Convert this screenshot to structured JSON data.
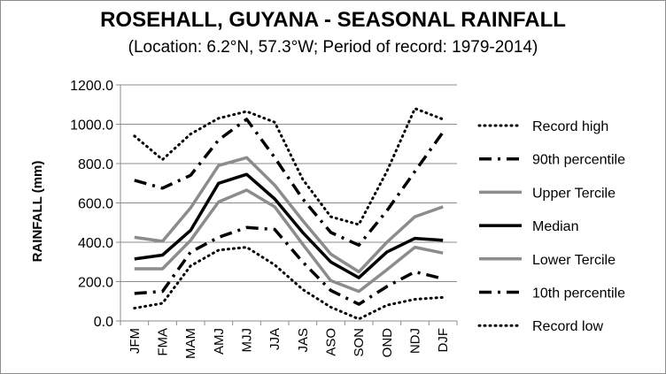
{
  "chart_data": {
    "type": "line",
    "title": "ROSEHALL, GUYANA - SEASONAL RAINFALL",
    "subtitle": "(Location: 6.2°N, 57.3°W; Period of record: 1979-2014)",
    "ylabel": "RAINFALL (mm)",
    "xlabel": "",
    "ylim": [
      0,
      1200
    ],
    "yticks": [
      "0.0",
      "200.0",
      "400.0",
      "600.0",
      "800.0",
      "1000.0",
      "1200.0"
    ],
    "grid": true,
    "legend_position": "right",
    "categories": [
      "JFM",
      "FMA",
      "MAM",
      "AMJ",
      "MJJ",
      "JJA",
      "JAS",
      "ASO",
      "SON",
      "OND",
      "NDJ",
      "DJF"
    ],
    "series": [
      {
        "name": "Record high",
        "style": "dotted",
        "color": "#000000",
        "values": [
          940,
          820,
          950,
          1030,
          1065,
          1010,
          720,
          530,
          490,
          760,
          1080,
          1025
        ]
      },
      {
        "name": "90th percentile",
        "style": "dashdot",
        "color": "#000000",
        "values": [
          715,
          675,
          740,
          920,
          1025,
          830,
          620,
          450,
          385,
          560,
          760,
          960
        ]
      },
      {
        "name": "Upper Tercile",
        "style": "solid",
        "color": "#8c8c8c",
        "values": [
          425,
          405,
          575,
          790,
          830,
          690,
          510,
          340,
          250,
          400,
          530,
          580
        ]
      },
      {
        "name": "Median",
        "style": "solid",
        "color": "#000000",
        "values": [
          315,
          335,
          460,
          700,
          745,
          620,
          450,
          300,
          220,
          350,
          420,
          410
        ]
      },
      {
        "name": "Lower Tercile",
        "style": "solid",
        "color": "#8c8c8c",
        "values": [
          265,
          265,
          410,
          605,
          665,
          580,
          390,
          205,
          150,
          260,
          375,
          345
        ]
      },
      {
        "name": "10th percentile",
        "style": "dashdot",
        "color": "#000000",
        "values": [
          140,
          150,
          350,
          425,
          475,
          465,
          300,
          155,
          85,
          175,
          250,
          215
        ]
      },
      {
        "name": "Record low",
        "style": "dotted",
        "color": "#000000",
        "values": [
          65,
          90,
          280,
          360,
          375,
          285,
          160,
          70,
          10,
          80,
          110,
          120
        ]
      }
    ]
  }
}
